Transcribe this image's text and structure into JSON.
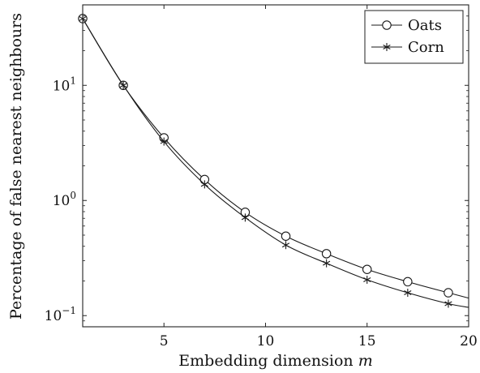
{
  "chart_data": {
    "type": "line",
    "xlabel": "Embedding dimension",
    "xlabel_var": "m",
    "ylabel": "Percentage of false nearest neighbours",
    "xlim": [
      1,
      20
    ],
    "ylim": [
      0.08,
      50
    ],
    "yscale": "log",
    "grid": false,
    "legend_position": "top-right",
    "x_ticks": [
      5,
      10,
      15,
      20
    ],
    "y_ticks": [
      {
        "value": 10,
        "base": "10",
        "exp": "1"
      },
      {
        "value": 1,
        "base": "10",
        "exp": "0"
      },
      {
        "value": 0.1,
        "base": "10",
        "exp": "−1"
      }
    ],
    "series": [
      {
        "name": "Oats",
        "marker": "circle",
        "color": "#1a1a1a",
        "x": [
          1,
          3,
          5,
          7,
          9,
          11,
          13,
          15,
          17,
          19,
          20
        ],
        "y": [
          38,
          10,
          3.5,
          1.52,
          0.79,
          0.49,
          0.345,
          0.252,
          0.197,
          0.158,
          0.142
        ],
        "marker_x": [
          1,
          3,
          5,
          7,
          9,
          11,
          13,
          15,
          17,
          19
        ]
      },
      {
        "name": "Corn",
        "marker": "asterisk",
        "color": "#1a1a1a",
        "x": [
          1,
          3,
          5,
          7,
          9,
          11,
          13,
          15,
          17,
          19,
          20
        ],
        "y": [
          38,
          10,
          3.25,
          1.38,
          0.71,
          0.41,
          0.285,
          0.205,
          0.158,
          0.127,
          0.118
        ],
        "marker_x": [
          1,
          3,
          5,
          7,
          9,
          11,
          13,
          15,
          17,
          19
        ]
      }
    ]
  }
}
